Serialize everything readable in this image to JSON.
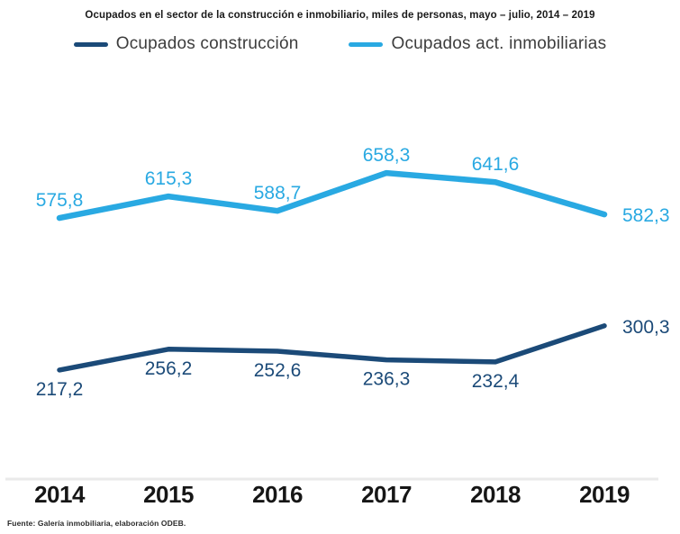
{
  "title": "Ocupados en el sector de la construcción e inmobiliario, miles de personas, mayo – julio, 2014 – 2019",
  "footer": "Fuente: Galería inmobiliaria, elaboración ODEB.",
  "legend": {
    "items": [
      {
        "label": "Ocupados construcción",
        "color": "#1B4A78"
      },
      {
        "label": "Ocupados act. inmobiliarias",
        "color": "#29A9E2"
      }
    ]
  },
  "chart_data": {
    "type": "line",
    "title": "Ocupados en el sector de la construcción e inmobiliario, miles de personas, mayo – julio, 2014 – 2019",
    "categories": [
      "2014",
      "2015",
      "2016",
      "2017",
      "2018",
      "2019"
    ],
    "series": [
      {
        "name": "Ocupados construcción",
        "color": "#1B4A78",
        "values": [
          217.2,
          256.2,
          252.6,
          236.3,
          232.4,
          300.3
        ],
        "labels": [
          "217,2",
          "256,2",
          "252,6",
          "236,3",
          "232,4",
          "300,3"
        ],
        "label_position": "below"
      },
      {
        "name": "Ocupados act. inmobiliarias",
        "color": "#29A9E2",
        "values": [
          575.8,
          615.3,
          588.7,
          658.3,
          641.6,
          582.3
        ],
        "labels": [
          "575,8",
          "615,3",
          "588,7",
          "658,3",
          "641,6",
          "582,3"
        ],
        "label_position": "above"
      }
    ],
    "xlabel": "",
    "ylabel": "",
    "legend_position": "top",
    "grid": false,
    "data_labels": true,
    "axis_line_color": "#EAEAEA"
  }
}
